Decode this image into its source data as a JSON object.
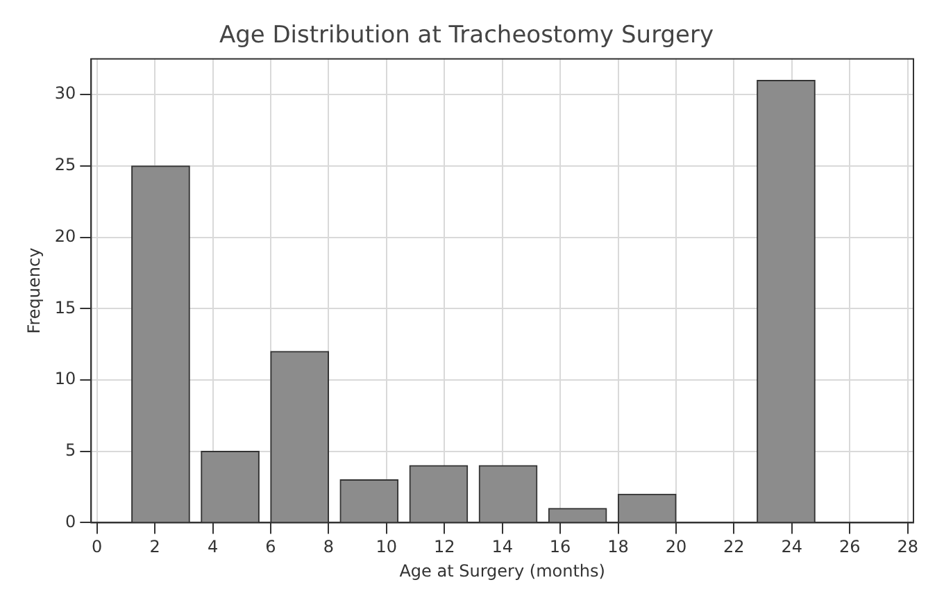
{
  "chart_data": {
    "type": "histogram",
    "title": "Age Distribution at Tracheostomy Surgery",
    "xlabel": "Age at Surgery (months)",
    "ylabel": "Frequency",
    "bins": [
      1,
      3.4,
      5.8,
      8.2,
      10.6,
      13,
      15.4,
      17.8,
      20.2,
      22.6,
      25
    ],
    "values": [
      25,
      5,
      12,
      3,
      4,
      4,
      1,
      2,
      0,
      31
    ],
    "color": "#8c8c8c",
    "xlim": [
      -0.2,
      28.2
    ],
    "xticks": [
      0,
      2,
      4,
      6,
      8,
      10,
      12,
      14,
      16,
      18,
      20,
      22,
      24,
      26,
      28
    ],
    "ylim": [
      0,
      32.5
    ],
    "yticks": [
      0,
      5,
      10,
      15,
      20,
      25,
      30
    ],
    "grid": true,
    "legend": false
  }
}
